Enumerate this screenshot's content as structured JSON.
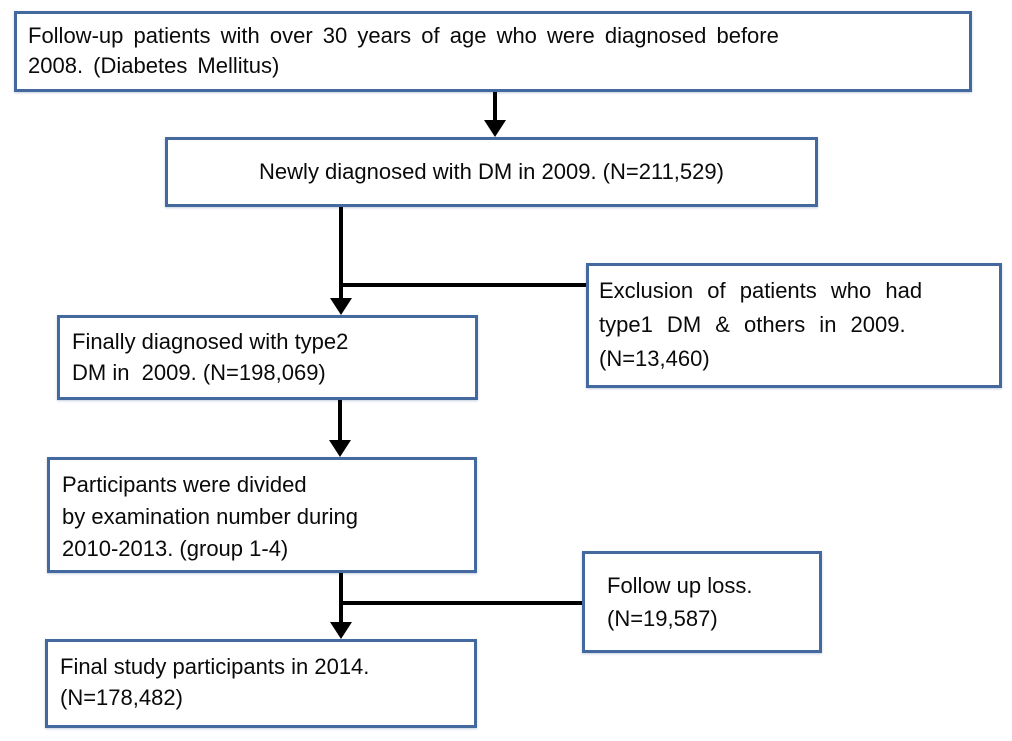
{
  "flowchart": {
    "description": "Diabetes Mellitus study participant selection flowchart",
    "style": {
      "box_border_color": "#44699e",
      "connector_color": "#000000",
      "text_color": "#0a0a0a",
      "background_color": "#ffffff"
    },
    "nodes": [
      {
        "id": "source-population",
        "text": "Follow-up patients with over 30 years of age who were diagnosed before\n2008. (Diabetes Mellitus)"
      },
      {
        "id": "newly-diagnosed",
        "text": "Newly diagnosed with DM in 2009. (N=211,529)",
        "n": "211,529"
      },
      {
        "id": "exclusion",
        "text": "Exclusion of patients who had\ntype1 DM & others in 2009.\n(N=13,460)",
        "n": "13,460"
      },
      {
        "id": "type2-diagnosed",
        "text": "Finally diagnosed with type2\nDM in  2009. (N=198,069)",
        "n": "198,069"
      },
      {
        "id": "divided-groups",
        "text": "Participants were divided\nby examination number during\n2010-2013. (group 1-4)"
      },
      {
        "id": "followup-loss",
        "text": "Follow up loss.\n(N=19,587)",
        "n": "19,587"
      },
      {
        "id": "final-participants",
        "text": "Final study participants in 2014.\n(N=178,482)",
        "n": "178,482"
      }
    ],
    "edges": [
      {
        "from": "source-population",
        "to": "newly-diagnosed",
        "type": "arrow"
      },
      {
        "from": "newly-diagnosed",
        "to": "type2-diagnosed",
        "type": "arrow"
      },
      {
        "from": "newly-diagnosed",
        "to": "exclusion",
        "type": "side-branch"
      },
      {
        "from": "type2-diagnosed",
        "to": "divided-groups",
        "type": "arrow"
      },
      {
        "from": "divided-groups",
        "to": "final-participants",
        "type": "arrow"
      },
      {
        "from": "divided-groups",
        "to": "followup-loss",
        "type": "side-branch"
      }
    ]
  }
}
